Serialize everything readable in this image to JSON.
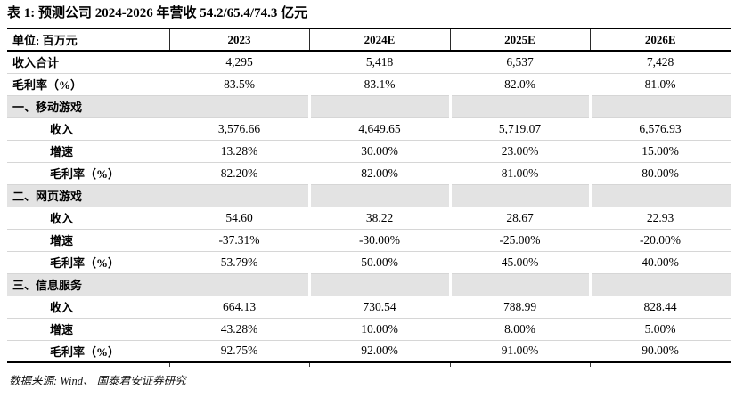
{
  "title": "表 1: 预测公司 2024-2026 年营收 54.2/65.4/74.3 亿元",
  "source": "数据来源: Wind、 国泰君安证券研究",
  "table": {
    "unit_label": "单位: 百万元",
    "years": [
      "2023",
      "2024E",
      "2025E",
      "2026E"
    ],
    "rows": [
      {
        "label": "收入合计",
        "type": "total",
        "values": [
          "4,295",
          "5,418",
          "6,537",
          "7,428"
        ]
      },
      {
        "label": "毛利率（%）",
        "type": "total",
        "values": [
          "83.5%",
          "83.1%",
          "82.0%",
          "81.0%"
        ]
      },
      {
        "label": "一、移动游戏",
        "type": "section",
        "values": [
          "",
          "",
          ""
        ]
      },
      {
        "label": "收入",
        "type": "detail",
        "values": [
          "3,576.66",
          "4,649.65",
          "5,719.07",
          "6,576.93"
        ]
      },
      {
        "label": "增速",
        "type": "detail",
        "values": [
          "13.28%",
          "30.00%",
          "23.00%",
          "15.00%"
        ]
      },
      {
        "label": "毛利率（%）",
        "type": "detail",
        "values": [
          "82.20%",
          "82.00%",
          "81.00%",
          "80.00%"
        ]
      },
      {
        "label": "二、网页游戏",
        "type": "section",
        "values": [
          "",
          "",
          ""
        ]
      },
      {
        "label": "收入",
        "type": "detail",
        "values": [
          "54.60",
          "38.22",
          "28.67",
          "22.93"
        ]
      },
      {
        "label": "增速",
        "type": "detail",
        "values": [
          "-37.31%",
          "-30.00%",
          "-25.00%",
          "-20.00%"
        ]
      },
      {
        "label": "毛利率（%）",
        "type": "detail",
        "values": [
          "53.79%",
          "50.00%",
          "45.00%",
          "40.00%"
        ]
      },
      {
        "label": "三、信息服务",
        "type": "section",
        "values": [
          "",
          "",
          ""
        ]
      },
      {
        "label": "收入",
        "type": "detail",
        "values": [
          "664.13",
          "730.54",
          "788.99",
          "828.44"
        ]
      },
      {
        "label": "增速",
        "type": "detail",
        "values": [
          "43.28%",
          "10.00%",
          "8.00%",
          "5.00%"
        ]
      },
      {
        "label": "毛利率（%）",
        "type": "detail",
        "values": [
          "92.75%",
          "92.00%",
          "91.00%",
          "90.00%"
        ]
      }
    ]
  }
}
